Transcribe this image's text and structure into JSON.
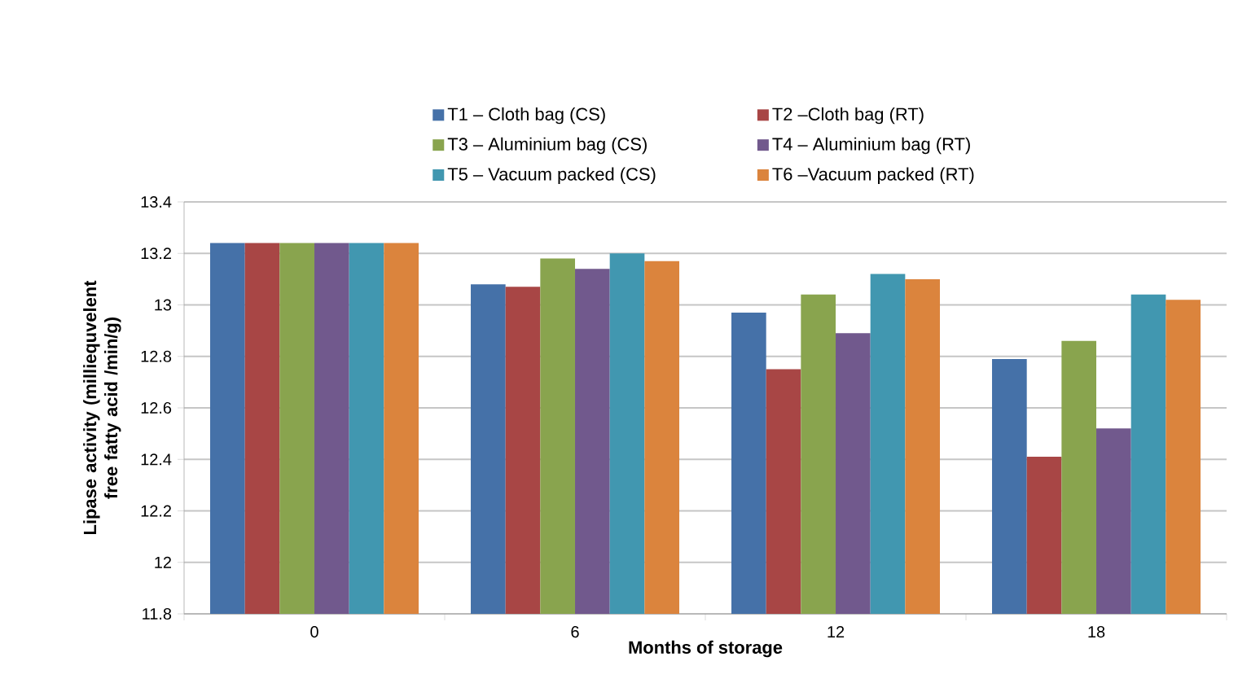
{
  "chart_data": {
    "type": "bar",
    "xlabel": "Months of storage",
    "ylabel": "Lipase activity (milliequvelent free fatty acid /min/g)",
    "categories": [
      "0",
      "6",
      "12",
      "18"
    ],
    "series": [
      {
        "name": "T1  – Cloth bag (CS)",
        "color": "#4571a8",
        "values": [
          13.24,
          13.08,
          12.97,
          12.79
        ]
      },
      {
        "name": "T2 –Cloth bag (RT)",
        "color": "#a84645",
        "values": [
          13.24,
          13.07,
          12.75,
          12.41
        ]
      },
      {
        "name": "T3 – Aluminium bag (CS)",
        "color": "#89a44e",
        "values": [
          13.24,
          13.18,
          13.04,
          12.86
        ]
      },
      {
        "name": "T4 – Aluminium bag (RT)",
        "color": "#71598d",
        "values": [
          13.24,
          13.14,
          12.89,
          12.52
        ]
      },
      {
        "name": "T5 –  Vacuum packed  (CS)",
        "color": "#4197b0",
        "values": [
          13.24,
          13.2,
          13.12,
          13.04
        ]
      },
      {
        "name": "T6 –Vacuum packed (RT)",
        "color": "#db843d",
        "values": [
          13.24,
          13.17,
          13.1,
          13.02
        ]
      }
    ],
    "ylim": [
      11.8,
      13.4
    ],
    "yticks": [
      11.8,
      12,
      12.2,
      12.4,
      12.6,
      12.8,
      13,
      13.2,
      13.4
    ],
    "grid": "y",
    "legend": "top"
  }
}
